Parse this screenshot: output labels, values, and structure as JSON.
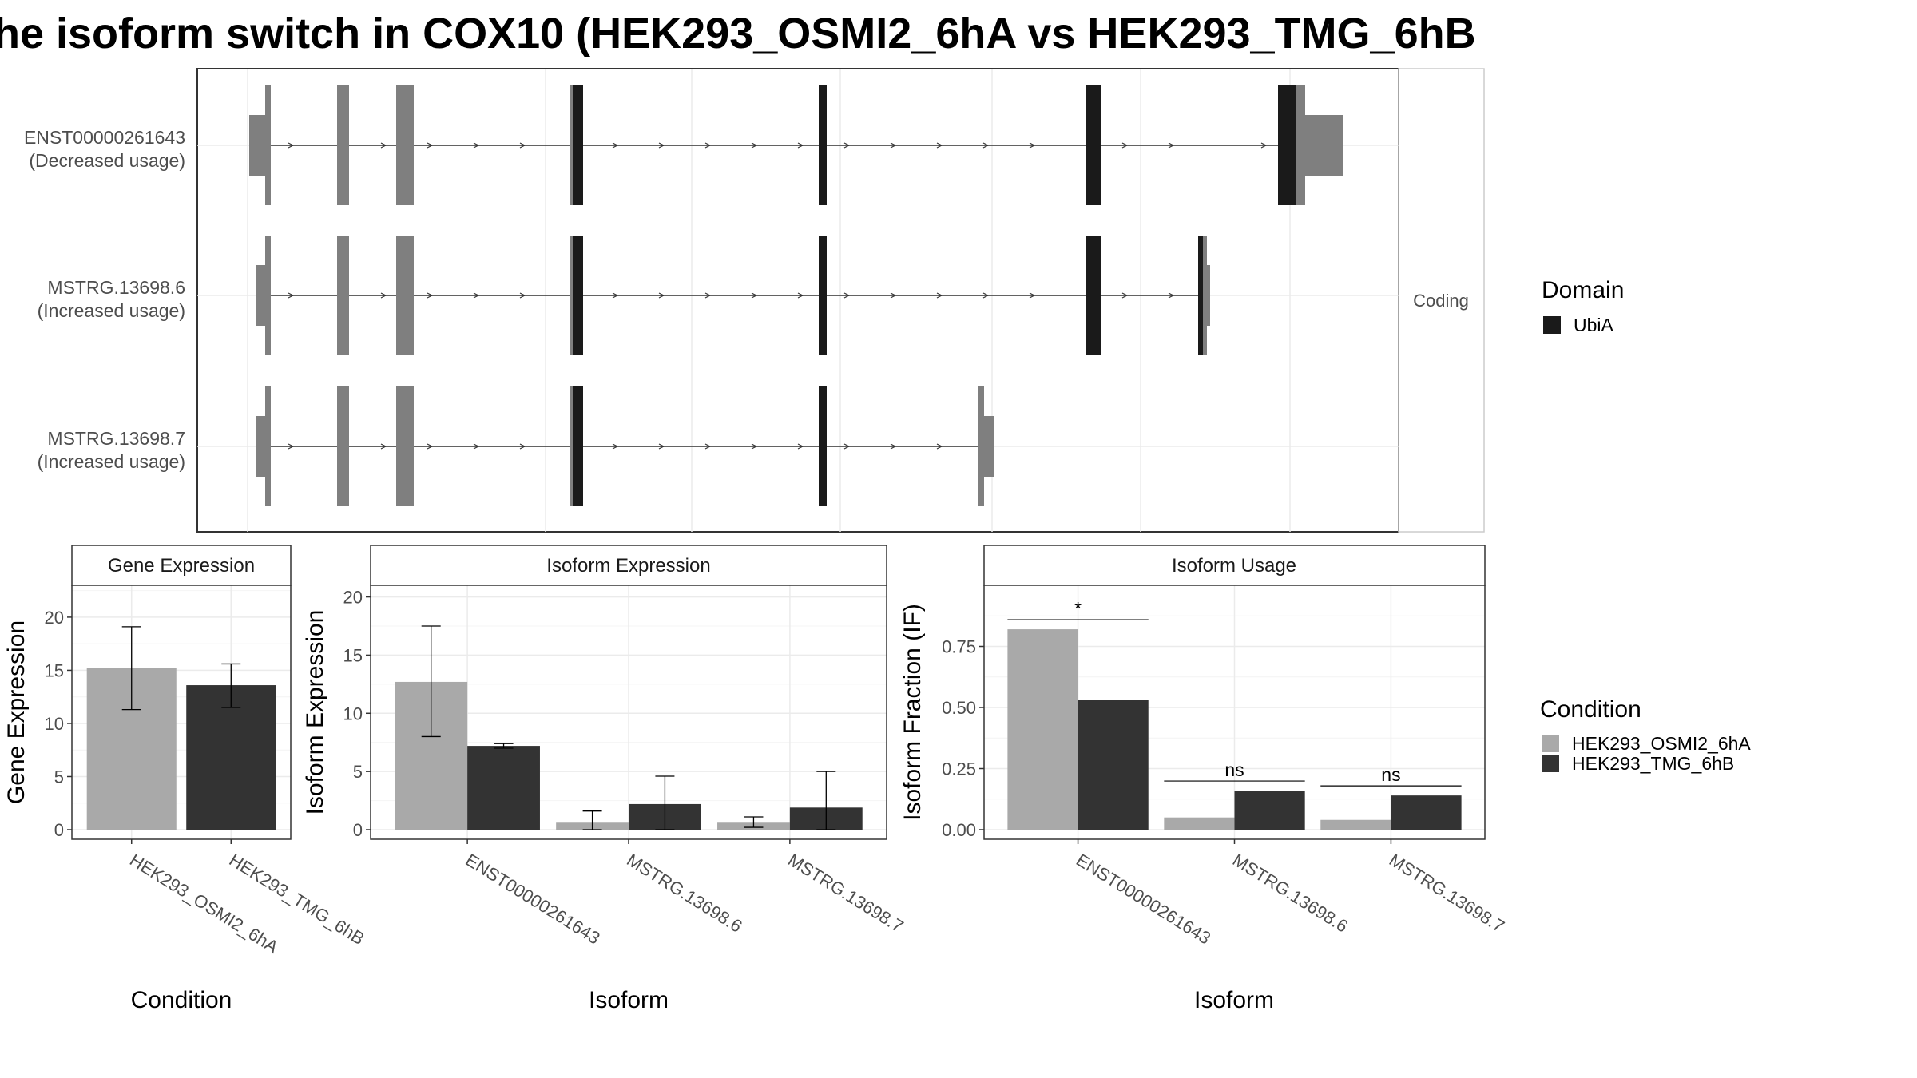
{
  "title": "he isoform switch in COX10 (HEK293_OSMI2_6hA vs HEK293_TMG_6hB",
  "colors": {
    "utr": "#7f7f7f",
    "domain": "#1a1a1a",
    "cond_a": "#a9a9a9",
    "cond_b": "#333333",
    "grid": "#ebebeb",
    "panel_border": "#333333"
  },
  "structure": {
    "strip_label": "Coding",
    "transcripts": [
      {
        "id": "ENST00000261643",
        "usage": "(Decreased usage)",
        "end_type": "long"
      },
      {
        "id": "MSTRG.13698.6",
        "usage": "(Increased usage)",
        "end_type": "short"
      },
      {
        "id": "MSTRG.13698.7",
        "usage": "(Increased usage)",
        "end_type": "truncated"
      }
    ],
    "legend": {
      "title": "Domain",
      "items": [
        {
          "label": "UbiA",
          "color": "#1a1a1a"
        }
      ]
    }
  },
  "chart_data": [
    {
      "type": "bar",
      "title": "Gene Expression",
      "xlabel": "Condition",
      "ylabel": "Gene Expression",
      "ylim": [
        0,
        23
      ],
      "yticks": [
        0,
        5,
        10,
        15,
        20
      ],
      "categories": [
        "HEK293_OSMI2_6hA",
        "HEK293_TMG_6hB"
      ],
      "values": [
        15.2,
        13.6
      ],
      "error_low": [
        11.3,
        11.5
      ],
      "error_high": [
        19.1,
        15.6
      ]
    },
    {
      "type": "bar",
      "title": "Isoform Expression",
      "xlabel": "Isoform",
      "ylabel": "Isoform Expression",
      "ylim": [
        0,
        21
      ],
      "yticks": [
        0,
        5,
        10,
        15,
        20
      ],
      "categories": [
        "ENST00000261643",
        "MSTRG.13698.6",
        "MSTRG.13698.7"
      ],
      "series": [
        {
          "name": "HEK293_OSMI2_6hA",
          "values": [
            12.7,
            0.6,
            0.6
          ],
          "error_low": [
            8.0,
            0.0,
            0.2
          ],
          "error_high": [
            17.5,
            1.6,
            1.1
          ]
        },
        {
          "name": "HEK293_TMG_6hB",
          "values": [
            7.2,
            2.2,
            1.9
          ],
          "error_low": [
            7.0,
            0.0,
            0.0
          ],
          "error_high": [
            7.4,
            4.6,
            5.0
          ]
        }
      ]
    },
    {
      "type": "bar",
      "title": "Isoform Usage",
      "xlabel": "Isoform",
      "ylabel": "Isoform Fraction (IF)",
      "ylim": [
        0,
        1.0
      ],
      "yticks": [
        0.0,
        0.25,
        0.5,
        0.75
      ],
      "ytick_labels": [
        "0.00",
        "0.25",
        "0.50",
        "0.75"
      ],
      "categories": [
        "ENST00000261643",
        "MSTRG.13698.6",
        "MSTRG.13698.7"
      ],
      "series": [
        {
          "name": "HEK293_OSMI2_6hA",
          "values": [
            0.82,
            0.05,
            0.04
          ]
        },
        {
          "name": "HEK293_TMG_6hB",
          "values": [
            0.53,
            0.16,
            0.14
          ]
        }
      ],
      "significance": [
        "*",
        "ns",
        "ns"
      ]
    }
  ],
  "condition_legend": {
    "title": "Condition",
    "items": [
      {
        "label": "HEK293_OSMI2_6hA",
        "color": "#a9a9a9"
      },
      {
        "label": "HEK293_TMG_6hB",
        "color": "#333333"
      }
    ]
  }
}
